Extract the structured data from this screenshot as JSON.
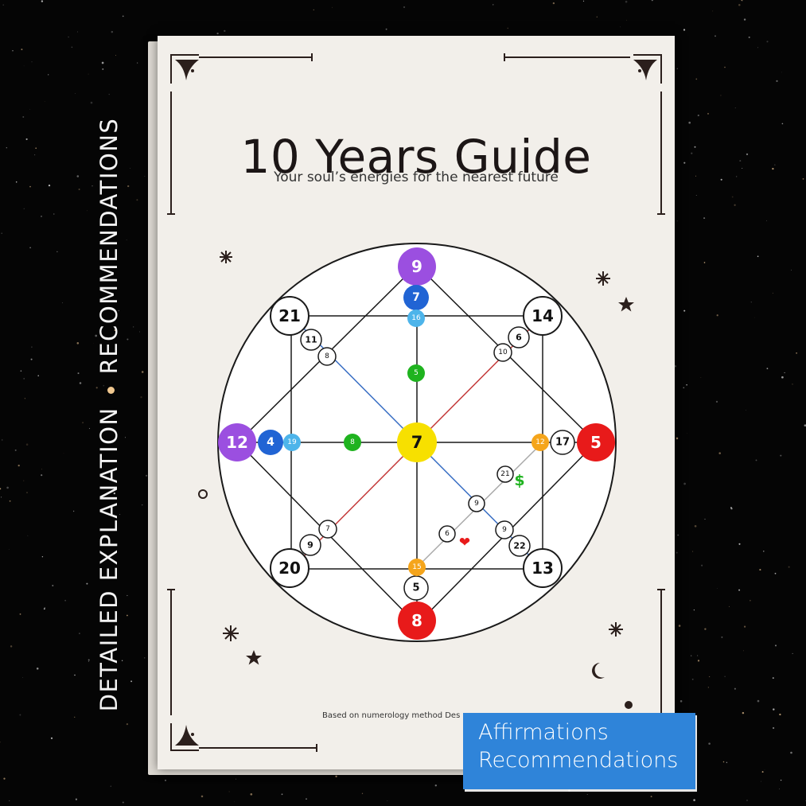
{
  "side_label": {
    "line1": "DETAILED EXPLANATION",
    "line2": "RECOMMENDATIONS"
  },
  "book": {
    "title": "10 Years Guide",
    "subtitle": "Your soul’s energies for the nearest future",
    "footer": "Based on numerology method Des"
  },
  "badge": {
    "line1": "Affirmations",
    "line2": "Recommendations"
  },
  "colors": {
    "background": "#050505",
    "cover": "#f2efea",
    "frame": "#2b1f1c",
    "purple": "#9b4fe0",
    "blue": "#2164d4",
    "light_blue": "#4db4ea",
    "green": "#1fb31f",
    "yellow": "#f7e000",
    "orange": "#f5a51b",
    "red": "#e81a1a",
    "badge": "#2f84d9"
  },
  "diagram": {
    "top": {
      "outer": "9",
      "mid": "7",
      "inner": "16",
      "center_line": "5"
    },
    "left": {
      "outer": "12",
      "mid": "4",
      "inner": "19",
      "center_line": "8"
    },
    "right": {
      "outer": "5",
      "mid": "17",
      "inner": "12"
    },
    "bottom": {
      "outer": "8",
      "mid": "5",
      "inner": "15"
    },
    "center": "7",
    "corner_tl": {
      "outer": "21",
      "mid": "11",
      "inner": "8"
    },
    "corner_tr": {
      "outer": "14",
      "mid": "6",
      "inner": "10"
    },
    "corner_bl": {
      "outer": "20",
      "mid": "9",
      "inner": "7"
    },
    "corner_br": {
      "outer": "13",
      "mid": "22",
      "inner": "9"
    },
    "money_line": {
      "money": "21",
      "middle": "9",
      "love": "6"
    },
    "money_symbol": "$",
    "love_symbol": "❤"
  }
}
